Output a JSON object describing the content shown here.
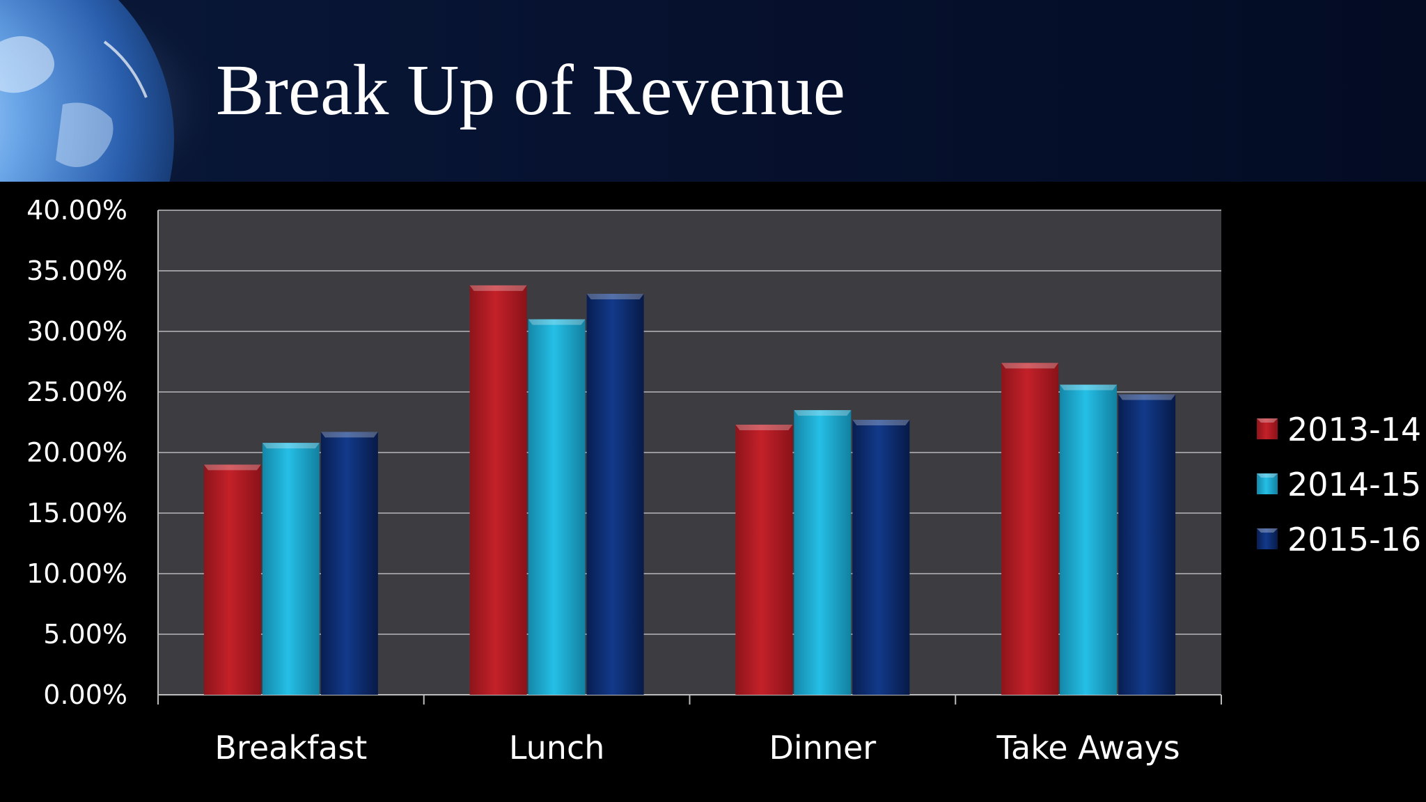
{
  "slide": {
    "title": "Break Up of Revenue"
  },
  "chart_data": {
    "type": "bar",
    "categories": [
      "Breakfast",
      "Lunch",
      "Dinner",
      "Take Aways"
    ],
    "series": [
      {
        "name": "2013-14",
        "values": [
          19.0,
          33.8,
          22.3,
          27.4
        ],
        "color": "#b81c24"
      },
      {
        "name": "2014-15",
        "values": [
          20.8,
          31.0,
          23.5,
          25.6
        ],
        "color": "#1fb0d6"
      },
      {
        "name": "2015-16",
        "values": [
          21.7,
          33.1,
          22.7,
          24.8
        ],
        "color": "#0c2a6e"
      }
    ],
    "yticks": [
      "0.00%",
      "5.00%",
      "10.00%",
      "15.00%",
      "20.00%",
      "25.00%",
      "30.00%",
      "35.00%",
      "40.00%"
    ],
    "ylim": [
      0,
      40
    ],
    "grid": true,
    "legend": "right",
    "plot_background": "#3d3c41"
  }
}
